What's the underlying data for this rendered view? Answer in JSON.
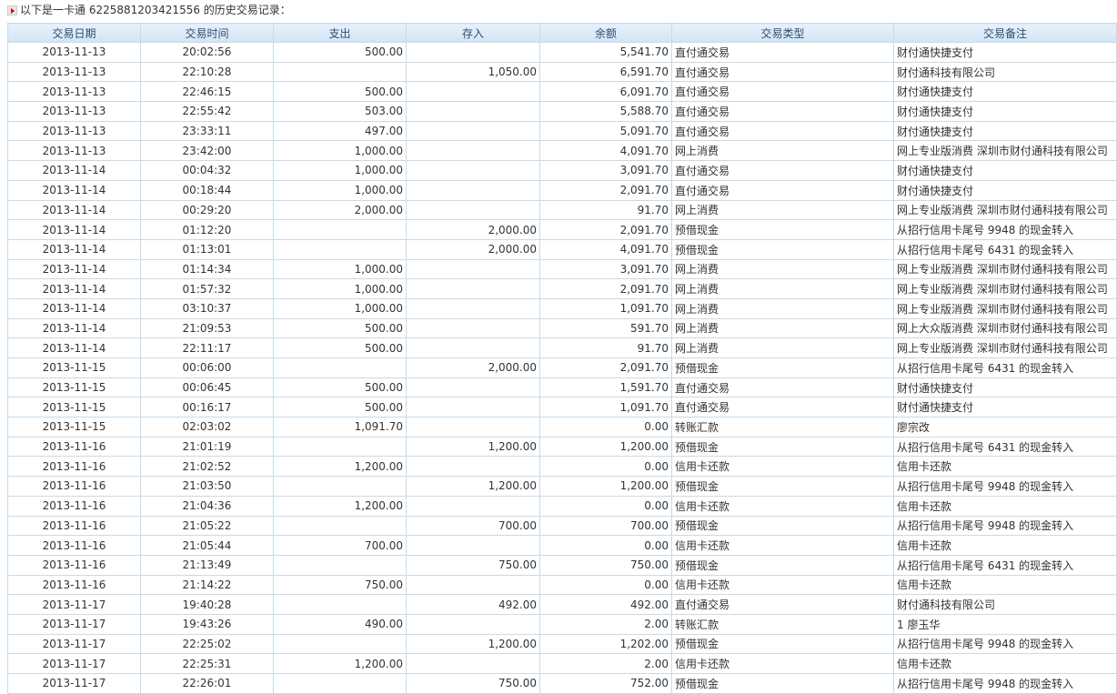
{
  "header": {
    "intro": "以下是一卡通 6225881203421556 的历史交易记录："
  },
  "table": {
    "columns": [
      "交易日期",
      "交易时间",
      "支出",
      "存入",
      "余额",
      "交易类型",
      "交易备注"
    ],
    "rows": [
      [
        "2013-11-13",
        "20:02:56",
        "500.00",
        null,
        "5,541.70",
        "直付通交易",
        "财付通快捷支付"
      ],
      [
        "2013-11-13",
        "22:10:28",
        null,
        "1,050.00",
        "6,591.70",
        "直付通交易",
        "财付通科技有限公司"
      ],
      [
        "2013-11-13",
        "22:46:15",
        "500.00",
        null,
        "6,091.70",
        "直付通交易",
        "财付通快捷支付"
      ],
      [
        "2013-11-13",
        "22:55:42",
        "503.00",
        null,
        "5,588.70",
        "直付通交易",
        "财付通快捷支付"
      ],
      [
        "2013-11-13",
        "23:33:11",
        "497.00",
        null,
        "5,091.70",
        "直付通交易",
        "财付通快捷支付"
      ],
      [
        "2013-11-13",
        "23:42:00",
        "1,000.00",
        null,
        "4,091.70",
        "网上消费",
        "网上专业版消费 深圳市财付通科技有限公司"
      ],
      [
        "2013-11-14",
        "00:04:32",
        "1,000.00",
        null,
        "3,091.70",
        "直付通交易",
        "财付通快捷支付"
      ],
      [
        "2013-11-14",
        "00:18:44",
        "1,000.00",
        null,
        "2,091.70",
        "直付通交易",
        "财付通快捷支付"
      ],
      [
        "2013-11-14",
        "00:29:20",
        "2,000.00",
        null,
        "91.70",
        "网上消费",
        "网上专业版消费 深圳市财付通科技有限公司"
      ],
      [
        "2013-11-14",
        "01:12:20",
        null,
        "2,000.00",
        "2,091.70",
        "预借现金",
        "从招行信用卡尾号 9948 的现金转入"
      ],
      [
        "2013-11-14",
        "01:13:01",
        null,
        "2,000.00",
        "4,091.70",
        "预借现金",
        "从招行信用卡尾号 6431 的现金转入"
      ],
      [
        "2013-11-14",
        "01:14:34",
        "1,000.00",
        null,
        "3,091.70",
        "网上消费",
        "网上专业版消费 深圳市财付通科技有限公司"
      ],
      [
        "2013-11-14",
        "01:57:32",
        "1,000.00",
        null,
        "2,091.70",
        "网上消费",
        "网上专业版消费 深圳市财付通科技有限公司"
      ],
      [
        "2013-11-14",
        "03:10:37",
        "1,000.00",
        null,
        "1,091.70",
        "网上消费",
        "网上专业版消费 深圳市财付通科技有限公司"
      ],
      [
        "2013-11-14",
        "21:09:53",
        "500.00",
        null,
        "591.70",
        "网上消费",
        "网上大众版消费 深圳市财付通科技有限公司"
      ],
      [
        "2013-11-14",
        "22:11:17",
        "500.00",
        null,
        "91.70",
        "网上消费",
        "网上专业版消费 深圳市财付通科技有限公司"
      ],
      [
        "2013-11-15",
        "00:06:00",
        null,
        "2,000.00",
        "2,091.70",
        "预借现金",
        "从招行信用卡尾号 6431 的现金转入"
      ],
      [
        "2013-11-15",
        "00:06:45",
        "500.00",
        null,
        "1,591.70",
        "直付通交易",
        "财付通快捷支付"
      ],
      [
        "2013-11-15",
        "00:16:17",
        "500.00",
        null,
        "1,091.70",
        "直付通交易",
        "财付通快捷支付"
      ],
      [
        "2013-11-15",
        "02:03:02",
        "1,091.70",
        null,
        "0.00",
        "转账汇款",
        "廖宗改"
      ],
      [
        "2013-11-16",
        "21:01:19",
        null,
        "1,200.00",
        "1,200.00",
        "预借现金",
        "从招行信用卡尾号 6431 的现金转入"
      ],
      [
        "2013-11-16",
        "21:02:52",
        "1,200.00",
        null,
        "0.00",
        "信用卡还款",
        "信用卡还款"
      ],
      [
        "2013-11-16",
        "21:03:50",
        null,
        "1,200.00",
        "1,200.00",
        "预借现金",
        "从招行信用卡尾号 9948 的现金转入"
      ],
      [
        "2013-11-16",
        "21:04:36",
        "1,200.00",
        null,
        "0.00",
        "信用卡还款",
        "信用卡还款"
      ],
      [
        "2013-11-16",
        "21:05:22",
        null,
        "700.00",
        "700.00",
        "预借现金",
        "从招行信用卡尾号 9948 的现金转入"
      ],
      [
        "2013-11-16",
        "21:05:44",
        "700.00",
        null,
        "0.00",
        "信用卡还款",
        "信用卡还款"
      ],
      [
        "2013-11-16",
        "21:13:49",
        null,
        "750.00",
        "750.00",
        "预借现金",
        "从招行信用卡尾号 6431 的现金转入"
      ],
      [
        "2013-11-16",
        "21:14:22",
        "750.00",
        null,
        "0.00",
        "信用卡还款",
        "信用卡还款"
      ],
      [
        "2013-11-17",
        "19:40:28",
        null,
        "492.00",
        "492.00",
        "直付通交易",
        "财付通科技有限公司"
      ],
      [
        "2013-11-17",
        "19:43:26",
        "490.00",
        null,
        "2.00",
        "转账汇款",
        "1 廖玉华"
      ],
      [
        "2013-11-17",
        "22:25:02",
        null,
        "1,200.00",
        "1,202.00",
        "预借现金",
        "从招行信用卡尾号 9948 的现金转入"
      ],
      [
        "2013-11-17",
        "22:25:31",
        "1,200.00",
        null,
        "2.00",
        "信用卡还款",
        "信用卡还款"
      ],
      [
        "2013-11-17",
        "22:26:01",
        null,
        "750.00",
        "752.00",
        "预借现金",
        "从招行信用卡尾号 9948 的现金转入"
      ]
    ]
  }
}
